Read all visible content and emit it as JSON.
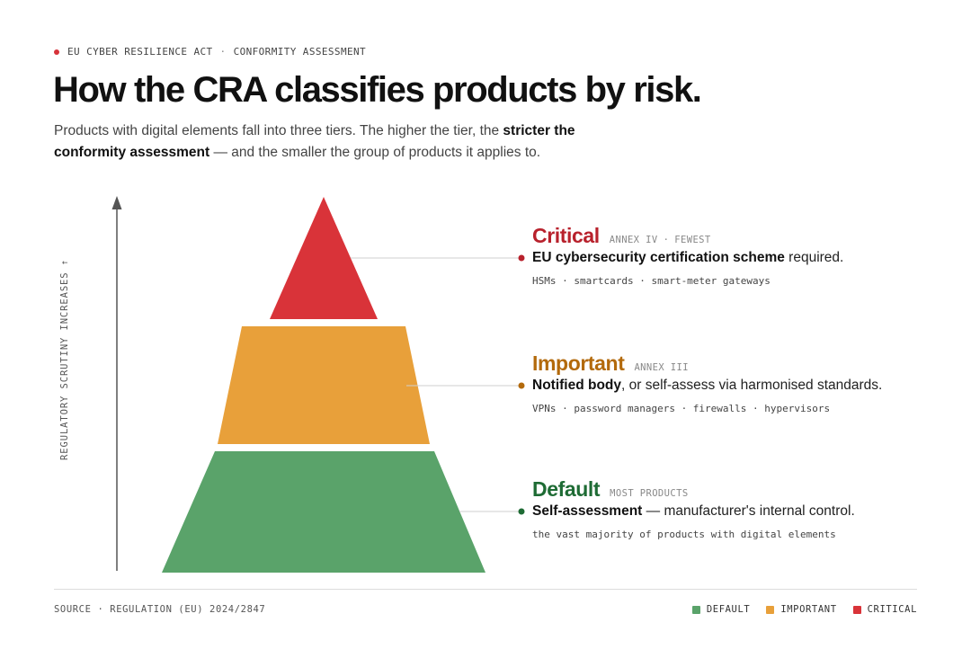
{
  "header": {
    "eyebrow_left": "EU CYBER RESILIENCE ACT",
    "eyebrow_sep": "·",
    "eyebrow_right": "CONFORMITY ASSESSMENT",
    "title": "How the CRA classifies products by risk.",
    "subtitle_part1": "Products with digital elements fall into three tiers. The higher the tier, the ",
    "subtitle_bold": "stricter the conformity assessment",
    "subtitle_part2": " — and the smaller the group of products it applies to."
  },
  "axis": {
    "label": "REGULATORY SCRUTINY INCREASES ↑"
  },
  "tiers": {
    "critical": {
      "name": "Critical",
      "tag1": "ANNEX IV",
      "tag_sep": "·",
      "tag2": "FEWEST",
      "desc_bold": "EU cybersecurity certification scheme",
      "desc_rest": " required.",
      "examples": "HSMs · smartcards · smart-meter gateways",
      "color": "#d93339",
      "text_color": "#b8212c"
    },
    "important": {
      "name": "Important",
      "tag1": "ANNEX III",
      "desc_bold": "Notified body",
      "desc_rest": ", or self-assess via harmonised standards.",
      "examples": "VPNs · password managers · firewalls · hypervisors",
      "color": "#e8a03a",
      "text_color": "#b36a0c"
    },
    "default": {
      "name": "Default",
      "tag1": "MOST PRODUCTS",
      "desc_bold": "Self-assessment",
      "desc_rest": " — manufacturer's internal control.",
      "examples": "the vast majority of products with digital elements",
      "color": "#5aa36a",
      "text_color": "#1e6b34"
    }
  },
  "footer": {
    "source": "SOURCE · REGULATION (EU) 2024/2847",
    "legend": [
      {
        "label": "DEFAULT",
        "color": "#5aa36a"
      },
      {
        "label": "IMPORTANT",
        "color": "#e8a03a"
      },
      {
        "label": "CRITICAL",
        "color": "#d93339"
      }
    ]
  }
}
